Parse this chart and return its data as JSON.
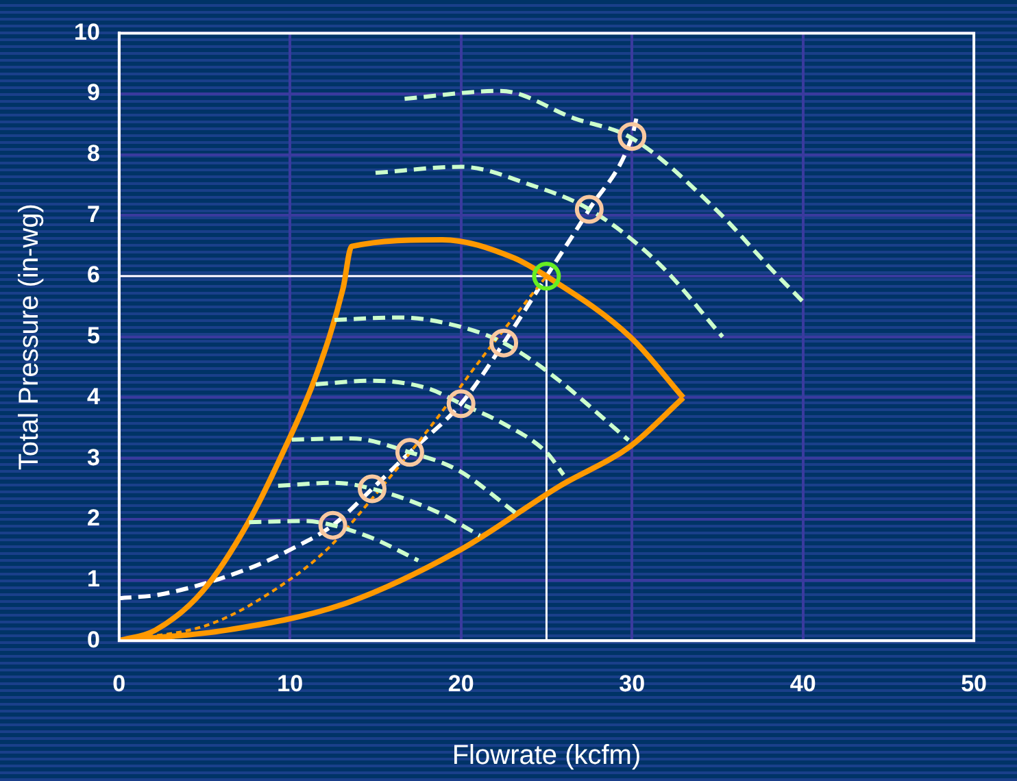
{
  "chart_data": {
    "type": "line",
    "xlabel": "Flowrate (kcfm)",
    "ylabel": "Total Pressure (in-wg)",
    "xlim": [
      0,
      50
    ],
    "xticks": [
      0,
      10,
      20,
      30,
      40,
      50
    ],
    "ylim": [
      0,
      10
    ],
    "yticks": [
      0,
      1,
      2,
      3,
      4,
      5,
      6,
      7,
      8,
      9,
      10
    ],
    "grid": true,
    "legend": false,
    "series": [
      {
        "type": "line",
        "color": "#ccffcc",
        "line_style": "dashed",
        "marker": "none",
        "x": [
          16.7,
          22.3,
          26.6,
          30,
          34.9,
          38.2,
          40
        ],
        "values": [
          8.92,
          9.05,
          8.6,
          8.27,
          7.1,
          6.1,
          5.58
        ]
      },
      {
        "type": "line",
        "color": "#ccffcc",
        "line_style": "dashed",
        "marker": "none",
        "x": [
          15,
          20,
          24.1,
          27.5,
          31.6,
          35.3
        ],
        "values": [
          7.7,
          7.8,
          7.5,
          7.1,
          6.2,
          5.0
        ]
      },
      {
        "type": "line",
        "color": "#ccffcc",
        "line_style": "dashed",
        "marker": "none",
        "x": [
          12.6,
          16.4,
          20.2,
          22.5,
          25.2,
          29.8
        ],
        "values": [
          5.28,
          5.32,
          5.15,
          4.9,
          4.4,
          3.3
        ]
      },
      {
        "type": "line",
        "color": "#ccffcc",
        "line_style": "dashed",
        "marker": "none",
        "x": [
          11.5,
          14.8,
          18.1,
          20,
          22.5,
          25,
          26
        ],
        "values": [
          4.22,
          4.28,
          4.15,
          3.9,
          3.57,
          3.1,
          2.73
        ]
      },
      {
        "type": "line",
        "color": "#ccffcc",
        "line_style": "dashed",
        "marker": "none",
        "x": [
          10.1,
          13.6,
          17,
          19.8,
          23.3
        ],
        "values": [
          3.31,
          3.33,
          3.1,
          2.81,
          2.08
        ]
      },
      {
        "type": "line",
        "color": "#ccffcc",
        "line_style": "dashed",
        "marker": "none",
        "x": [
          9.3,
          12.6,
          14.8,
          18.6,
          21.1
        ],
        "values": [
          2.55,
          2.6,
          2.5,
          2.12,
          1.73
        ]
      },
      {
        "type": "line",
        "color": "#ccffcc",
        "line_style": "dashed",
        "marker": "none",
        "x": [
          7.6,
          10.9,
          12.5,
          14.8,
          17.5
        ],
        "values": [
          1.95,
          1.97,
          1.9,
          1.69,
          1.32
        ]
      },
      {
        "color": "#ff9900",
        "line_style": "solid",
        "marker": "none",
        "x": [
          0,
          2.1,
          4.9,
          7.6,
          9.5,
          11.5,
          13.1,
          13.6,
          18.9,
          23.1,
          25,
          29.9,
          33
        ],
        "values": [
          0,
          0.17,
          0.82,
          1.97,
          3.05,
          4.35,
          5.8,
          6.49,
          6.6,
          6.3,
          6.0,
          5.0,
          4.0
        ]
      },
      {
        "color": "#ff9900",
        "line_style": "solid",
        "marker": "none",
        "x": [
          0,
          6.2,
          13.1,
          19.8,
          25.8,
          29.9,
          33
        ],
        "values": [
          0,
          0.17,
          0.6,
          1.47,
          2.55,
          3.2,
          4.0
        ]
      },
      {
        "type": "line",
        "color": "#ff9900",
        "line_style": "dotted",
        "marker": "none",
        "x": [
          0,
          5.4,
          9.8,
          12.3,
          14.8,
          18.1,
          21.4,
          25
        ],
        "values": [
          0,
          0.28,
          0.97,
          1.54,
          2.34,
          3.48,
          4.72,
          6.0
        ]
      },
      {
        "type": "line",
        "color": "#ffffff",
        "line_style": "dashed",
        "marker": "none",
        "x": [
          0,
          2.4,
          7.6,
          10.3,
          12.5,
          14.8,
          17,
          20,
          22.5,
          25,
          27.5,
          30,
          30.3
        ],
        "values": [
          0.7,
          0.76,
          1.19,
          1.54,
          1.9,
          2.5,
          3.1,
          3.9,
          4.9,
          6.0,
          7.1,
          8.3,
          8.65
        ]
      },
      {
        "type": "scatter",
        "marker": "circle",
        "colors": [
          "#f8c8a0",
          "#f8c8a0",
          "#f8c8a0",
          "#f8c8a0",
          "#f8c8a0",
          "#66ee22",
          "#f8c8a0",
          "#f8c8a0"
        ],
        "x": [
          12.5,
          14.8,
          17,
          20,
          22.5,
          25,
          27.5,
          30
        ],
        "values": [
          1.9,
          2.5,
          3.1,
          3.9,
          4.9,
          6.0,
          7.1,
          8.3
        ]
      }
    ],
    "ref_lines": [
      {
        "axis": "y",
        "value": 6,
        "color": "#ffffff"
      },
      {
        "axis": "x",
        "value": 25,
        "color": "#ffffff"
      }
    ]
  }
}
